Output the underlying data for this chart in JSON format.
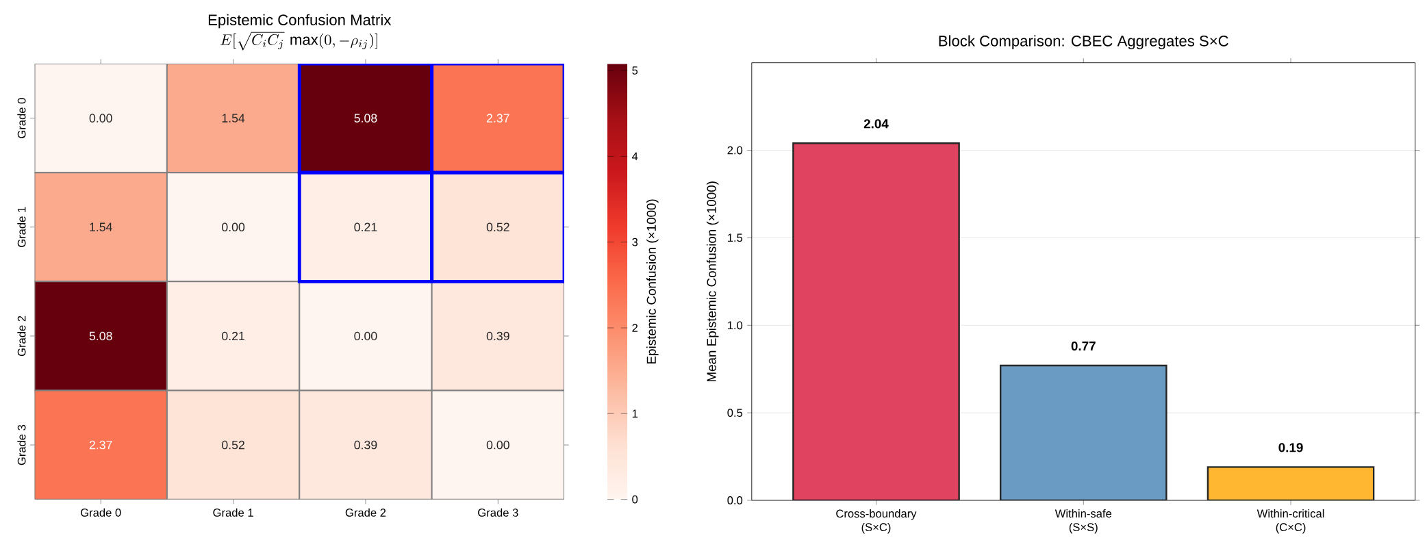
{
  "chart_data": [
    {
      "type": "heatmap",
      "title": "Epistemic Confusion Matrix",
      "subtitle": "E[\\sqrt{C_i C_j}\\,\\max(0,-\\rho_{ij})]",
      "clabel": "Epistemic Confusion (×1000)",
      "categories": [
        "Grade 0",
        "Grade 1",
        "Grade 2",
        "Grade 3"
      ],
      "y_categories": [
        "Grade 0",
        "Grade 1",
        "Grade 2",
        "Grade 3"
      ],
      "cells": [
        [
          0.0,
          1.54,
          5.08,
          2.37
        ],
        [
          1.54,
          0.0,
          0.21,
          0.52
        ],
        [
          5.08,
          0.21,
          0.0,
          0.39
        ],
        [
          2.37,
          0.52,
          0.39,
          0.0
        ]
      ],
      "cell_labels": [
        [
          "0.00",
          "1.54",
          "5.08",
          "2.37"
        ],
        [
          "1.54",
          "0.00",
          "0.21",
          "0.52"
        ],
        [
          "5.08",
          "0.21",
          "0.00",
          "0.39"
        ],
        [
          "2.37",
          "0.52",
          "0.39",
          "0.00"
        ]
      ],
      "clim": [
        0,
        5.08
      ],
      "cticks": [
        0,
        1,
        2,
        3,
        4,
        5
      ]
    },
    {
      "type": "bar",
      "title": "Block Comparison: CBEC Aggregates S×C",
      "ylabel": "Mean Epistemic Confusion (×1000)",
      "categories": [
        "Cross-boundary (S×C)",
        "Within-safe (S×S)",
        "Within-critical (C×C)"
      ],
      "values": [
        2.04,
        0.77,
        0.19
      ],
      "value_labels": [
        "2.04",
        "0.77",
        "0.19"
      ],
      "colors": [
        "#e0435f",
        "#6a9bc3",
        "#ffb631"
      ],
      "ylim": [
        0,
        2.5
      ],
      "yticks": [
        {
          "value": 0,
          "label": "0.0"
        },
        {
          "value": 0.5,
          "label": "0.5"
        },
        {
          "value": 1.0,
          "label": "1.0"
        },
        {
          "value": 1.5,
          "label": "1.5"
        },
        {
          "value": 2.0,
          "label": "2.0"
        }
      ],
      "grid": "y"
    }
  ]
}
